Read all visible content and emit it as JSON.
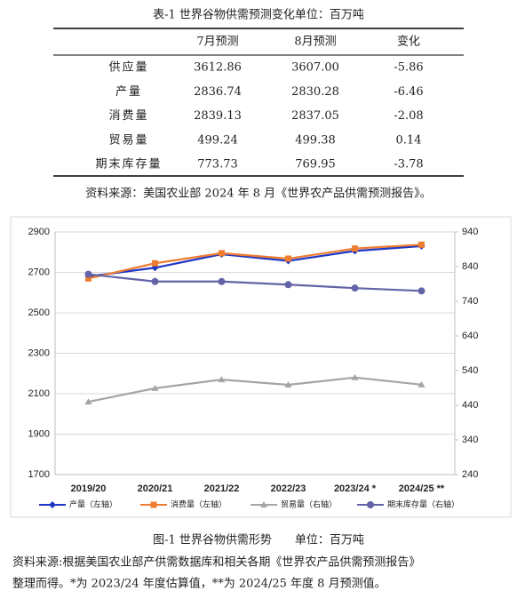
{
  "table": {
    "title": "表-1 世界谷物供需预测变化单位：百万吨",
    "header": [
      "7月预测",
      "8月预测",
      "变化"
    ],
    "rows": [
      [
        "供应量",
        "3612.86",
        "3607.00",
        "-5.86"
      ],
      [
        "产量",
        "2836.74",
        "2830.28",
        "-6.46"
      ],
      [
        "消费量",
        "2839.13",
        "2837.05",
        "-2.08"
      ],
      [
        "贸易量",
        "499.24",
        "499.38",
        "0.14"
      ],
      [
        "期末库存量",
        "773.73",
        "769.95",
        "-3.78"
      ]
    ],
    "source": "资料来源：美国农业部 2024 年 8 月《世界农产品供需预测报告》。"
  },
  "chart_data": {
    "type": "line",
    "categories": [
      "2019/20",
      "2020/21",
      "2021/22",
      "2022/23",
      "2023/24 *",
      "2024/25 **"
    ],
    "series": [
      {
        "name": "产量（左轴）",
        "color": "#1f35c4",
        "marker": "diamond",
        "values": [
          2680,
          2723,
          2790,
          2757,
          2806,
          2830.28
        ]
      },
      {
        "name": "消费量（左轴）",
        "color": "#ed7d31",
        "marker": "square",
        "values": [
          2670,
          2745,
          2795,
          2768,
          2818,
          2837.05
        ]
      },
      {
        "name": "贸易量（右轴）",
        "color": "#a5a5a5",
        "marker": "triangle",
        "axis": "y2",
        "values": [
          450,
          489,
          514,
          499,
          520,
          499.38
        ]
      },
      {
        "name": "期末库存量（右轴）",
        "color": "#6264a7",
        "marker": "circle",
        "axis": "y2",
        "values": [
          818,
          797,
          797,
          788,
          778,
          769.95
        ]
      }
    ],
    "ylim": [
      1700,
      2900
    ],
    "yticks": [
      1700,
      1900,
      2100,
      2300,
      2500,
      2700,
      2900
    ],
    "y2lim": [
      240,
      940
    ],
    "y2ticks": [
      240,
      340,
      440,
      540,
      640,
      740,
      840,
      940
    ],
    "grid": true,
    "legend": "bottom"
  },
  "caption": "图-1 世界谷物供需形势　　单位：百万吨",
  "source_lines": [
    "资料来源:根据美国农业部产供需数据库和相关各期《世界农产品供需预测报告》",
    "整理而得。*为 2023/24 年度估算值，**为 2024/25 年度 8 月预测值。"
  ]
}
